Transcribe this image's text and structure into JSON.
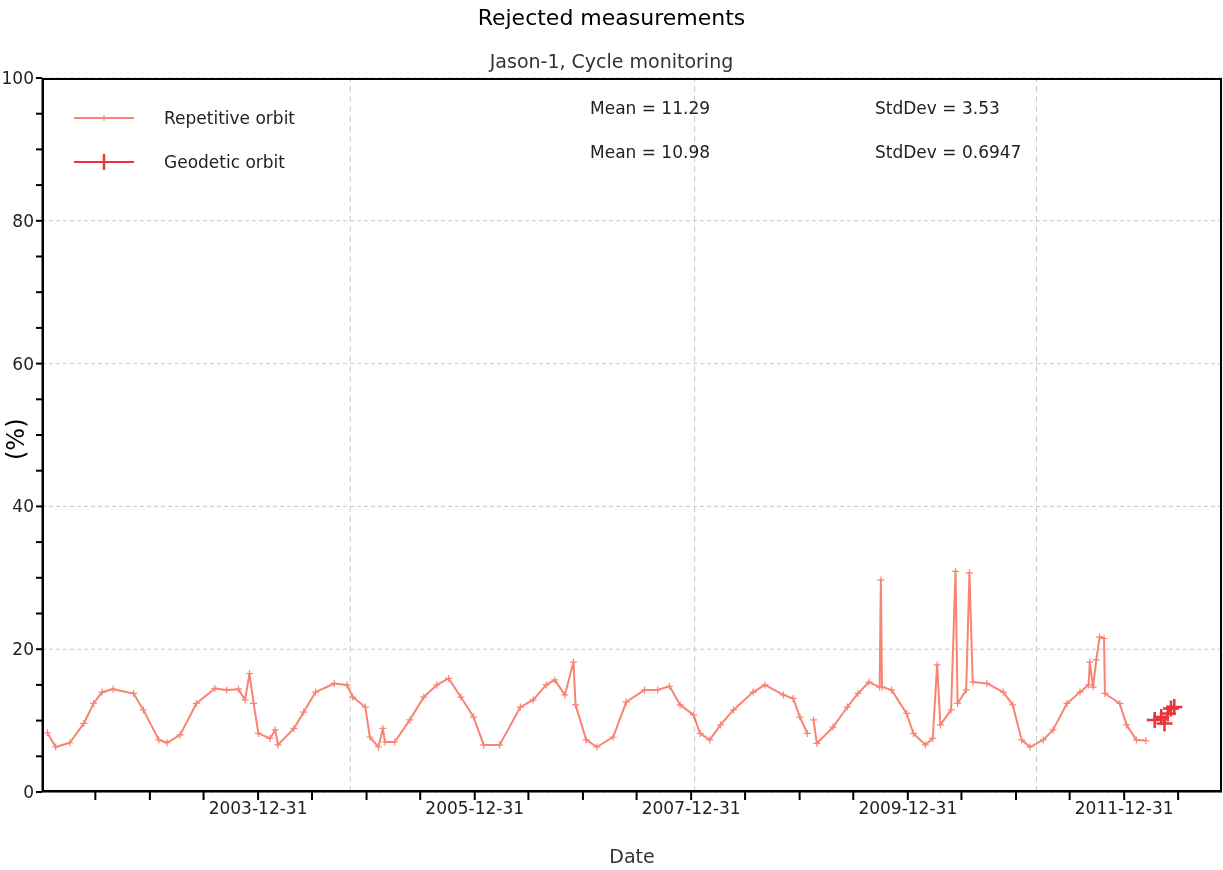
{
  "chart_data": {
    "type": "line",
    "title": "Rejected measurements",
    "subtitle": "Jason-1, Cycle monitoring",
    "xlabel": "Date",
    "ylabel": "(%)",
    "annotations": [
      "Mean = 11.29",
      "StdDev = 3.53",
      "Mean = 10.98",
      "StdDev = 0.6947"
    ],
    "xlim": [
      "2002-01-01",
      "2012-11-25"
    ],
    "xticks": [
      {
        "value": "2002-06-30",
        "label": null
      },
      {
        "value": "2002-12-31",
        "label": null
      },
      {
        "value": "2003-06-30",
        "label": null
      },
      "2003-12-31",
      {
        "value": "2004-06-30",
        "label": null
      },
      {
        "value": "2004-12-31",
        "label": null
      },
      {
        "value": "2005-06-30",
        "label": null
      },
      "2005-12-31",
      {
        "value": "2006-06-30",
        "label": null
      },
      {
        "value": "2006-12-31",
        "label": null
      },
      {
        "value": "2007-06-30",
        "label": null
      },
      "2007-12-31",
      {
        "value": "2008-06-30",
        "label": null
      },
      {
        "value": "2008-12-31",
        "label": null
      },
      {
        "value": "2009-06-30",
        "label": null
      },
      "2009-12-31",
      {
        "value": "2010-06-30",
        "label": null
      },
      {
        "value": "2010-12-31",
        "label": null
      },
      {
        "value": "2011-06-30",
        "label": null
      },
      "2011-12-31",
      {
        "value": "2012-06-30",
        "label": null
      }
    ],
    "ylim": [
      0,
      100
    ],
    "yticks": [
      0,
      {
        "value": 5,
        "label": null
      },
      {
        "value": 10,
        "label": null
      },
      {
        "value": 15,
        "label": null
      },
      20,
      {
        "value": 25,
        "label": null
      },
      {
        "value": 30,
        "label": null
      },
      {
        "value": 35,
        "label": null
      },
      40,
      {
        "value": 45,
        "label": null
      },
      {
        "value": 50,
        "label": null
      },
      {
        "value": 55,
        "label": null
      },
      60,
      {
        "value": 65,
        "label": null
      },
      {
        "value": 70,
        "label": null
      },
      {
        "value": 75,
        "label": null
      },
      80,
      {
        "value": 85,
        "label": null
      },
      {
        "value": 90,
        "label": null
      },
      {
        "value": 95,
        "label": null
      },
      100
    ],
    "grid": "y",
    "legend": "top left",
    "marker": "cross",
    "line_style": "solid",
    "ref_lines": [
      {
        "axis": "x",
        "value": "2004-11-06",
        "color": "#c8c8c8",
        "line_style": "dashed"
      },
      {
        "axis": "x",
        "value": "2008-01-12",
        "color": "#c8c8c8",
        "line_style": "dashed"
      },
      {
        "axis": "x",
        "value": "2011-03-10",
        "color": "#c8c8c8",
        "line_style": "dashed"
      }
    ],
    "series": [
      {
        "name": "Repetitive orbit",
        "color": "#f88474",
        "x": [
          "2002-01-19",
          "2002-02-16",
          "2002-04-05",
          "2002-05-22",
          "2002-06-24",
          "2002-07-23",
          "2002-08-29",
          "2002-11-06",
          "2002-12-09",
          "2003-01-30",
          "2003-02-27",
          "2003-04-12",
          "2003-06-06",
          "2003-08-07",
          "2003-09-16",
          "2003-10-26",
          "2003-11-17",
          "2003-12-02",
          "2003-12-16",
          "2004-01-01",
          "2004-02-09",
          "2004-02-27",
          "2004-03-07",
          "2004-04-30",
          "2004-06-02",
          "2004-07-12",
          "2004-09-13",
          "2004-10-26",
          "2004-11-14",
          "2004-12-27",
          "2005-01-11",
          "2005-02-09",
          "2005-02-24",
          "2005-03-03",
          "2005-04-05",
          "2005-05-26",
          "2005-07-12",
          "2005-08-25",
          "2005-10-04",
          "2005-11-14",
          "2005-12-27",
          "2006-01-30",
          "2006-03-25",
          "2006-06-03",
          "2006-07-16",
          "2006-08-29",
          "2006-09-27",
          "2006-10-31",
          "2006-11-29",
          "2006-12-06",
          "2007-01-11",
          "2007-02-16",
          "2007-04-12",
          "2007-05-26",
          "2007-07-27",
          "2007-09-09",
          "2007-10-19",
          "2007-11-24",
          "2008-01-08",
          "2008-01-30",
          "2008-03-03",
          "2008-04-08",
          "2008-05-22",
          "2008-07-27",
          "2008-09-05",
          "2008-11-06",
          "2008-12-09",
          "2009-01-01",
          "2009-01-26",
          "2009-02-05",
          "2009-02-16",
          "2009-02-27",
          "2009-04-23",
          "2009-06-10",
          "2009-07-16",
          "2009-08-22",
          "2009-09-27",
          "2009-10-01",
          "2009-10-05",
          "2009-11-06",
          "2009-12-27",
          "2010-01-19",
          "2010-02-28",
          "2010-03-25",
          "2010-04-09",
          "2010-04-20",
          "2010-05-26",
          "2010-06-10",
          "2010-06-17",
          "2010-07-16",
          "2010-07-27",
          "2010-08-07",
          "2010-09-24",
          "2010-11-18",
          "2010-12-20",
          "2011-01-19",
          "2011-02-16",
          "2011-04-02",
          "2011-05-05",
          "2011-06-21",
          "2011-08-04",
          "2011-09-02",
          "2011-09-06",
          "2011-09-17",
          "2011-09-28",
          "2011-10-09",
          "2011-10-24",
          "2011-10-27",
          "2011-12-16",
          "2012-01-08",
          "2012-02-10",
          "2012-03-13"
        ],
        "values": [
          8.3,
          6.3,
          6.9,
          9.6,
          12.4,
          14.0,
          14.4,
          13.8,
          11.5,
          7.3,
          6.9,
          8.0,
          12.4,
          14.5,
          14.3,
          14.4,
          12.9,
          16.6,
          12.4,
          8.2,
          7.5,
          8.7,
          6.6,
          8.9,
          11.2,
          14.0,
          15.2,
          15.0,
          13.3,
          11.9,
          7.7,
          6.3,
          8.9,
          7.0,
          7.0,
          10.1,
          13.3,
          15.0,
          15.9,
          13.3,
          10.5,
          6.6,
          6.6,
          11.9,
          12.9,
          15.0,
          15.7,
          13.6,
          18.2,
          12.2,
          7.3,
          6.3,
          7.7,
          12.6,
          14.3,
          14.3,
          14.8,
          12.2,
          10.8,
          8.2,
          7.3,
          9.4,
          11.5,
          14.0,
          15.0,
          13.6,
          13.1,
          10.5,
          8.2,
          null,
          10.1,
          6.8,
          9.1,
          11.9,
          13.8,
          15.4,
          14.7,
          29.7,
          14.7,
          14.3,
          11.0,
          8.2,
          6.6,
          7.5,
          17.8,
          9.4,
          11.5,
          30.9,
          12.4,
          14.3,
          30.7,
          15.4,
          15.2,
          14.0,
          12.2,
          7.3,
          6.3,
          7.3,
          8.7,
          12.4,
          14.0,
          15.0,
          18.2,
          14.7,
          18.5,
          21.7,
          21.5,
          13.8,
          12.4,
          9.4,
          7.3,
          7.2
        ]
      },
      {
        "name": "Geodetic orbit",
        "color": "#e8333a",
        "x": [
          "2012-04-12",
          "2012-05-04",
          "2012-05-15",
          "2012-05-26",
          "2012-06-06",
          "2012-06-17"
        ],
        "values": [
          10.1,
          10.5,
          9.6,
          11.0,
          11.7,
          11.9
        ]
      }
    ]
  }
}
